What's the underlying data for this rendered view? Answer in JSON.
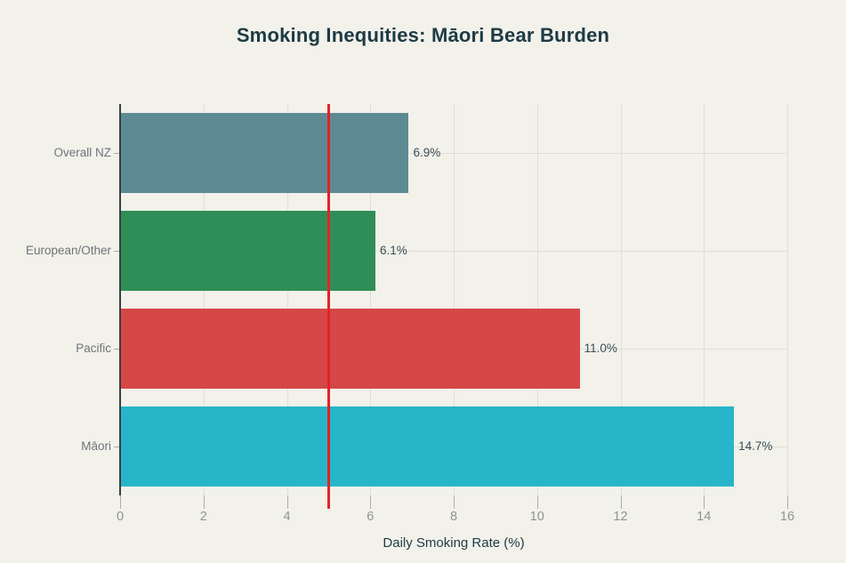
{
  "page": {
    "background": "#f2f1ea"
  },
  "chart_data": {
    "type": "bar",
    "orientation": "horizontal",
    "title": "Smoking Inequities: Māori Bear Burden",
    "xlabel": "Daily Smoking Rate (%)",
    "categories": [
      "Overall NZ",
      "European/Other",
      "Pacific",
      "Māori"
    ],
    "values": [
      6.9,
      6.1,
      11.0,
      14.7
    ],
    "value_labels": [
      "6.9%",
      "6.1%",
      "11.0%",
      "14.7%"
    ],
    "bar_colors": [
      "#5e8a93",
      "#2f8e57",
      "#d64747",
      "#27b6c9"
    ],
    "xlim": [
      0,
      16
    ],
    "xticks": [
      0,
      2,
      4,
      6,
      8,
      10,
      12,
      14,
      16
    ],
    "grid": true,
    "legend": false,
    "reference_line": {
      "x": 5,
      "color": "#e32227"
    },
    "colors": {
      "title": "#1d3a45",
      "axis_line": "#383d40",
      "gridline": "#e1dfd5",
      "tick_label": "#8f948f",
      "category_label": "#6f747a",
      "value_label": "#3a4d57",
      "x_axis_label": "#1d3a45"
    }
  }
}
